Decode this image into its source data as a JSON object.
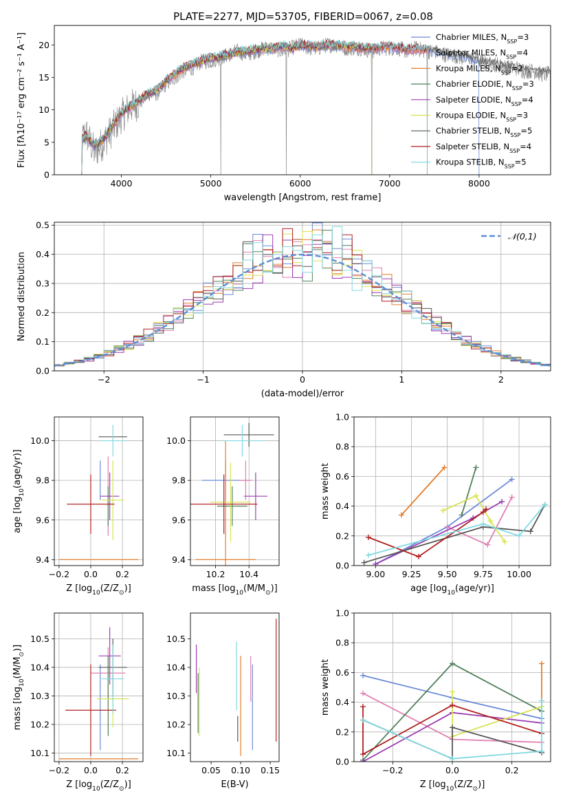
{
  "figure": {
    "title": "PLATE=2277, MJD=53705, FIBERID=0067, z=0.08"
  },
  "chart_data": [
    {
      "id": "spectrum",
      "type": "line",
      "xlabel": "wavelength [Angstrom, rest frame]",
      "ylabel": "Flux [fλ10⁻¹⁷ erg cm⁻² s⁻¹ A⁻¹]",
      "xlim": [
        3250,
        8800
      ],
      "ylim": [
        0,
        23
      ],
      "xticks": [
        4000,
        5000,
        6000,
        7000,
        8000
      ],
      "yticks": [
        0,
        5,
        10,
        15,
        20
      ],
      "grid": false,
      "legend_position": "top-right",
      "x": [
        3550,
        3600,
        3700,
        3800,
        3900,
        4000,
        4100,
        4200,
        4300,
        4400,
        4500,
        4600,
        4700,
        4800,
        4900,
        5000,
        5100,
        5200,
        5300,
        5400,
        5500,
        5600,
        5700,
        5800,
        5900,
        6000,
        6100,
        6200,
        6300,
        6400,
        6500,
        6600,
        6700,
        6800,
        6900,
        7000,
        7100,
        7200,
        7300,
        7400,
        7500,
        7600,
        7700,
        7800,
        7900,
        8000,
        8100,
        8200,
        8300,
        8400,
        8500,
        8600,
        8700
      ],
      "series": [
        {
          "name": "Chabrier MILES, N$_{SSP}$=3",
          "color": "#6a89d8",
          "x_end": 8000
        },
        {
          "name": "Salpeter MILES, N$_{SSP}$=4",
          "color": "#e07fb3",
          "x_end": 7420
        },
        {
          "name": "Kroupa MILES, N$_{SSP}$=2",
          "color": "#e37d2a",
          "x_end": 7420
        },
        {
          "name": "Chabrier ELODIE, N$_{SSP}$=3",
          "color": "#4f7f5a",
          "x_end": 6800
        },
        {
          "name": "Salpeter ELODIE, N$_{SSP}$=4",
          "color": "#9b3bb0",
          "x_end": 6800
        },
        {
          "name": "Kroupa ELODIE, N$_{SSP}$=3",
          "color": "#d7e34f",
          "x_end": 6800
        },
        {
          "name": "Chabrier STELIB, N$_{SSP}$=5",
          "color": "#555555",
          "x_end": 8800
        },
        {
          "name": "Salpeter STELIB, N$_{SSP}$=4",
          "color": "#b01f1f",
          "x_end": 7420
        },
        {
          "name": "Kroupa STELIB, N$_{SSP}$=5",
          "color": "#7fd9e0",
          "x_end": 7420
        }
      ],
      "model_flux": [
        5.2,
        6.0,
        4.5,
        5.5,
        7.5,
        9.5,
        10.5,
        11.5,
        12.5,
        13.0,
        14.5,
        15.5,
        16.5,
        17.0,
        17.5,
        18.0,
        18.2,
        18.5,
        19.0,
        19.0,
        19.3,
        19.5,
        19.5,
        19.8,
        19.5,
        20.0,
        19.8,
        19.8,
        20.0,
        20.0,
        19.8,
        19.8,
        19.5,
        19.5,
        19.5,
        19.8,
        19.5,
        19.3,
        19.5,
        19.3,
        19.0,
        18.8,
        18.5,
        18.3,
        18.0,
        17.5,
        17.3,
        17.0,
        16.8,
        16.5,
        16.3,
        16.0,
        15.8
      ],
      "observed_flux": [
        5.0,
        6.5,
        3.5,
        5.0,
        7.0,
        9.0,
        10.5,
        11.0,
        12.5,
        12.5,
        14.0,
        15.0,
        16.0,
        16.5,
        17.5,
        17.5,
        18.0,
        18.5,
        19.0,
        18.5,
        19.0,
        19.5,
        19.5,
        19.0,
        19.5,
        20.0,
        19.5,
        19.5,
        20.0,
        20.0,
        19.5,
        19.5,
        19.5,
        19.0,
        19.5,
        19.5,
        19.5,
        19.0,
        19.5,
        19.0,
        19.0,
        18.5,
        18.5,
        18.0,
        18.0,
        17.5,
        17.0,
        17.0,
        16.5,
        16.5,
        16.0,
        16.0,
        15.5
      ]
    },
    {
      "id": "residuals",
      "type": "line",
      "xlabel": "(data-model)/error",
      "ylabel": "Normed distribution",
      "xlim": [
        -2.5,
        2.5
      ],
      "ylim": [
        0,
        0.51
      ],
      "xticks": [
        -2,
        -1,
        0,
        1,
        2
      ],
      "xtick_labels": [
        "−2",
        "−1",
        "0",
        "1",
        "2"
      ],
      "yticks": [
        0.0,
        0.1,
        0.2,
        0.3,
        0.4,
        0.5
      ],
      "ytick_labels": [
        "0.0",
        "0.1",
        "0.2",
        "0.3",
        "0.4",
        "0.5"
      ],
      "grid": true,
      "legend_position": "top-right",
      "reference_curve": {
        "name": "$\\mathcal{N}(0,1)$",
        "color": "#5b8ed6",
        "style": "dashed",
        "mean": 0,
        "sigma": 1
      },
      "bin_width": 0.1,
      "hist_series_count": 9
    },
    {
      "id": "age-vs-Z",
      "type": "scatter",
      "xlabel": "Z [log$_{10}$(Z/Z$_\\odot$)]",
      "ylabel": "age  [log$_{10}$(age/yr)]",
      "xlim": [
        -0.23,
        0.33
      ],
      "ylim": [
        9.37,
        10.12
      ],
      "xticks": [
        -0.2,
        0.0,
        0.2
      ],
      "xtick_labels": [
        "−0.2",
        "0.0",
        "0.2"
      ],
      "yticks": [
        9.4,
        9.6,
        9.8,
        10.0
      ],
      "ytick_labels": [
        "9.4",
        "9.6",
        "9.8",
        "10.0"
      ],
      "grid": true,
      "points": [
        {
          "color": "#6a89d8",
          "x": 0.06,
          "xerr": 0.0,
          "y": 9.8,
          "yerr": 0.1
        },
        {
          "color": "#e07fb3",
          "x": 0.11,
          "xerr": 0.0,
          "y": 9.72,
          "yerr": 0.2
        },
        {
          "color": "#e37d2a",
          "x": 0.05,
          "xerr": 0.25,
          "y": 9.4,
          "yerr": 0.0
        },
        {
          "color": "#4f7f5a",
          "x": 0.11,
          "xerr": 0.0,
          "y": 9.67,
          "yerr": 0.1
        },
        {
          "color": "#9b3bb0",
          "x": 0.12,
          "xerr": 0.06,
          "y": 9.72,
          "yerr": 0.12
        },
        {
          "color": "#d7e34f",
          "x": 0.14,
          "xerr": 0.07,
          "y": 9.7,
          "yerr": 0.2
        },
        {
          "color": "#555555",
          "x": 0.14,
          "xerr": 0.09,
          "y": 10.02,
          "yerr": 0.0
        },
        {
          "color": "#b01f1f",
          "x": 0.0,
          "xerr": 0.15,
          "y": 9.68,
          "yerr": 0.15
        },
        {
          "color": "#7fd9e0",
          "x": 0.14,
          "xerr": 0.08,
          "y": 10.0,
          "yerr": 0.08
        }
      ]
    },
    {
      "id": "age-vs-mass",
      "type": "scatter",
      "xlabel": "mass [log$_{10}$(M/M$_\\odot$)]",
      "ylabel": "",
      "xlim": [
        10.05,
        10.58
      ],
      "ylim": [
        9.37,
        10.12
      ],
      "xticks": [
        10.2,
        10.4
      ],
      "xtick_labels": [
        "10.2",
        "10.4"
      ],
      "yticks": [
        9.4,
        9.6,
        9.8,
        10.0
      ],
      "ytick_labels": [
        "9.4",
        "9.6",
        "9.8",
        "10.0"
      ],
      "grid": true,
      "points": [
        {
          "color": "#6a89d8",
          "x": 10.26,
          "xerr": 0.14,
          "y": 9.8,
          "yerr": 0.1
        },
        {
          "color": "#e07fb3",
          "x": 10.38,
          "xerr": 0.04,
          "y": 9.8,
          "yerr": 0.1
        },
        {
          "color": "#e37d2a",
          "x": 10.26,
          "xerr": 0.18,
          "y": 9.4,
          "yerr": 0.6
        },
        {
          "color": "#4f7f5a",
          "x": 10.3,
          "xerr": 0.09,
          "y": 9.67,
          "yerr": 0.1
        },
        {
          "color": "#9b3bb0",
          "x": 10.44,
          "xerr": 0.07,
          "y": 9.72,
          "yerr": 0.12
        },
        {
          "color": "#d7e34f",
          "x": 10.29,
          "xerr": 0.12,
          "y": 9.69,
          "yerr": 0.2
        },
        {
          "color": "#555555",
          "x": 10.4,
          "xerr": 0.15,
          "y": 10.03,
          "yerr": 0.06
        },
        {
          "color": "#b01f1f",
          "x": 10.25,
          "xerr": 0.2,
          "y": 9.68,
          "yerr": 0.15
        },
        {
          "color": "#7fd9e0",
          "x": 10.36,
          "xerr": 0.12,
          "y": 10.0,
          "yerr": 0.08
        }
      ]
    },
    {
      "id": "weight-vs-age",
      "type": "line",
      "xlabel": "age  [log$_{10}$(age/yr)]",
      "ylabel": "mass weight",
      "xlim": [
        8.85,
        10.22
      ],
      "ylim": [
        0.0,
        1.0
      ],
      "xticks": [
        9.0,
        9.25,
        9.5,
        9.75,
        10.0
      ],
      "xtick_labels": [
        "9.00",
        "9.25",
        "9.50",
        "9.75",
        "10.00"
      ],
      "yticks": [
        0.0,
        0.2,
        0.4,
        0.6,
        0.8,
        1.0
      ],
      "ytick_labels": [
        "0.0",
        "0.2",
        "0.4",
        "0.6",
        "0.8",
        "1.0"
      ],
      "grid": true,
      "series": [
        {
          "color": "#6a89d8",
          "x": [
            9.0,
            9.5,
            9.95
          ],
          "y": [
            0.01,
            0.26,
            0.58
          ]
        },
        {
          "color": "#e07fb3",
          "x": [
            9.5,
            9.78,
            9.95
          ],
          "y": [
            0.26,
            0.14,
            0.46
          ]
        },
        {
          "color": "#e37d2a",
          "x": [
            9.18,
            9.48
          ],
          "y": [
            0.34,
            0.66
          ]
        },
        {
          "color": "#4f7f5a",
          "x": [
            9.6,
            9.7
          ],
          "y": [
            0.34,
            0.66
          ]
        },
        {
          "color": "#9b3bb0",
          "x": [
            9.0,
            9.68,
            9.88
          ],
          "y": [
            0.01,
            0.32,
            0.43
          ]
        },
        {
          "color": "#d7e34f",
          "x": [
            9.47,
            9.7,
            9.8,
            9.9
          ],
          "y": [
            0.37,
            0.47,
            0.3,
            0.16
          ]
        },
        {
          "color": "#555555",
          "x": [
            8.92,
            9.75,
            10.08,
            10.18
          ],
          "y": [
            0.02,
            0.26,
            0.23,
            0.41
          ]
        },
        {
          "color": "#b01f1f",
          "x": [
            8.95,
            9.3,
            9.75,
            9.77
          ],
          "y": [
            0.19,
            0.06,
            0.36,
            0.38
          ]
        },
        {
          "color": "#7fd9e0",
          "x": [
            8.95,
            9.75,
            10.0,
            10.18
          ],
          "y": [
            0.07,
            0.28,
            0.2,
            0.41
          ]
        }
      ]
    },
    {
      "id": "mass-vs-Z",
      "type": "scatter",
      "xlabel": "Z [log$_{10}$(Z/Z$_\\odot$)]",
      "ylabel": "mass [log$_{10}$(M/M$_\\odot$)]",
      "xlim": [
        -0.23,
        0.33
      ],
      "ylim": [
        10.07,
        10.59
      ],
      "xticks": [
        -0.2,
        0.0,
        0.2
      ],
      "xtick_labels": [
        "−0.2",
        "0.0",
        "0.2"
      ],
      "yticks": [
        10.1,
        10.2,
        10.3,
        10.4,
        10.5
      ],
      "ytick_labels": [
        "10.1",
        "10.2",
        "10.3",
        "10.4",
        "10.5"
      ],
      "grid": true,
      "points": [
        {
          "color": "#6a89d8",
          "x": 0.06,
          "xerr": 0.0,
          "y": 10.26,
          "yerr": 0.15
        },
        {
          "color": "#e07fb3",
          "x": 0.11,
          "xerr": 0.11,
          "y": 10.38,
          "yerr": 0.09
        },
        {
          "color": "#e37d2a",
          "x": 0.05,
          "xerr": 0.25,
          "y": 10.08,
          "yerr": 0.0
        },
        {
          "color": "#4f7f5a",
          "x": 0.11,
          "xerr": 0.0,
          "y": 10.3,
          "yerr": 0.14
        },
        {
          "color": "#9b3bb0",
          "x": 0.12,
          "xerr": 0.07,
          "y": 10.44,
          "yerr": 0.1
        },
        {
          "color": "#d7e34f",
          "x": 0.14,
          "xerr": 0.1,
          "y": 10.29,
          "yerr": 0.1
        },
        {
          "color": "#555555",
          "x": 0.14,
          "xerr": 0.09,
          "y": 10.4,
          "yerr": 0.1
        },
        {
          "color": "#b01f1f",
          "x": 0.0,
          "xerr": 0.16,
          "y": 10.25,
          "yerr": 0.16
        },
        {
          "color": "#7fd9e0",
          "x": 0.14,
          "xerr": 0.07,
          "y": 10.36,
          "yerr": 0.12
        }
      ]
    },
    {
      "id": "mass-vs-ebv",
      "type": "scatter",
      "xlabel": "E(B-V)",
      "ylabel": "",
      "xlim": [
        0.015,
        0.165
      ],
      "ylim": [
        10.07,
        10.59
      ],
      "xticks": [
        0.05,
        0.1,
        0.15
      ],
      "xtick_labels": [
        "0.05",
        "0.10",
        "0.15"
      ],
      "yticks": [
        10.1,
        10.2,
        10.3,
        10.4,
        10.5
      ],
      "ytick_labels": [
        "10.1",
        "10.2",
        "10.3",
        "10.4",
        "10.5"
      ],
      "grid": false,
      "points": [
        {
          "color": "#9b3bb0",
          "x": 0.025,
          "y0": 10.31,
          "y1": 10.48
        },
        {
          "color": "#d7e34f",
          "x": 0.03,
          "y0": 10.16,
          "y1": 10.4
        },
        {
          "color": "#4f7f5a",
          "x": 0.028,
          "y0": 10.17,
          "y1": 10.38
        },
        {
          "color": "#555555",
          "x": 0.095,
          "y0": 10.14,
          "y1": 10.23
        },
        {
          "color": "#7fd9e0",
          "x": 0.093,
          "y0": 10.25,
          "y1": 10.49
        },
        {
          "color": "#e37d2a",
          "x": 0.1,
          "y0": 10.09,
          "y1": 10.44
        },
        {
          "color": "#e07fb3",
          "x": 0.117,
          "y0": 10.28,
          "y1": 10.44
        },
        {
          "color": "#6a89d8",
          "x": 0.12,
          "y0": 10.11,
          "y1": 10.41
        },
        {
          "color": "#b01f1f",
          "x": 0.16,
          "y0": 10.14,
          "y1": 10.57
        }
      ]
    },
    {
      "id": "weight-vs-Z",
      "type": "line",
      "xlabel": "Z [log$_{10}$(Z/Z$_\\odot$)]",
      "ylabel": "mass weight",
      "xlim": [
        -0.33,
        0.33
      ],
      "ylim": [
        0.0,
        1.0
      ],
      "xticks": [
        -0.2,
        0.0,
        0.2
      ],
      "xtick_labels": [
        "−0.2",
        "0.0",
        "0.2"
      ],
      "yticks": [
        0.0,
        0.2,
        0.4,
        0.6,
        0.8,
        1.0
      ],
      "ytick_labels": [
        "0.0",
        "0.2",
        "0.4",
        "0.6",
        "0.8",
        "1.0"
      ],
      "grid": true,
      "series": [
        {
          "color": "#6a89d8",
          "x": [
            -0.3,
            0.0,
            0.3
          ],
          "y": [
            0.58,
            0.43,
            0.29
          ]
        },
        {
          "color": "#e07fb3",
          "x": [
            -0.3,
            0.0,
            0.3
          ],
          "y": [
            0.46,
            0.15,
            0.13
          ]
        },
        {
          "color": "#e37d2a",
          "x": [
            0.3,
            0.3
          ],
          "y": [
            0.34,
            0.66
          ]
        },
        {
          "color": "#4f7f5a",
          "x": [
            -0.3,
            0.0,
            0.3
          ],
          "y": [
            0.01,
            0.66,
            0.34
          ]
        },
        {
          "color": "#9b3bb0",
          "x": [
            -0.3,
            0.0,
            0.3
          ],
          "y": [
            0.0,
            0.33,
            0.26
          ]
        },
        {
          "color": "#d7e34f",
          "x": [
            0.0,
            0.0,
            0.3
          ],
          "y": [
            0.47,
            0.17,
            0.37
          ]
        },
        {
          "color": "#555555",
          "x": [
            -0.3,
            0.0,
            0.0,
            0.3
          ],
          "y": [
            0.28,
            0.02,
            0.23,
            0.06
          ]
        },
        {
          "color": "#b01f1f",
          "x": [
            -0.3,
            -0.3,
            0.0,
            0.3
          ],
          "y": [
            0.37,
            0.05,
            0.38,
            0.19
          ]
        },
        {
          "color": "#7fd9e0",
          "x": [
            -0.3,
            0.0,
            0.3,
            0.3
          ],
          "y": [
            0.28,
            0.02,
            0.07,
            0.41
          ]
        }
      ]
    }
  ]
}
